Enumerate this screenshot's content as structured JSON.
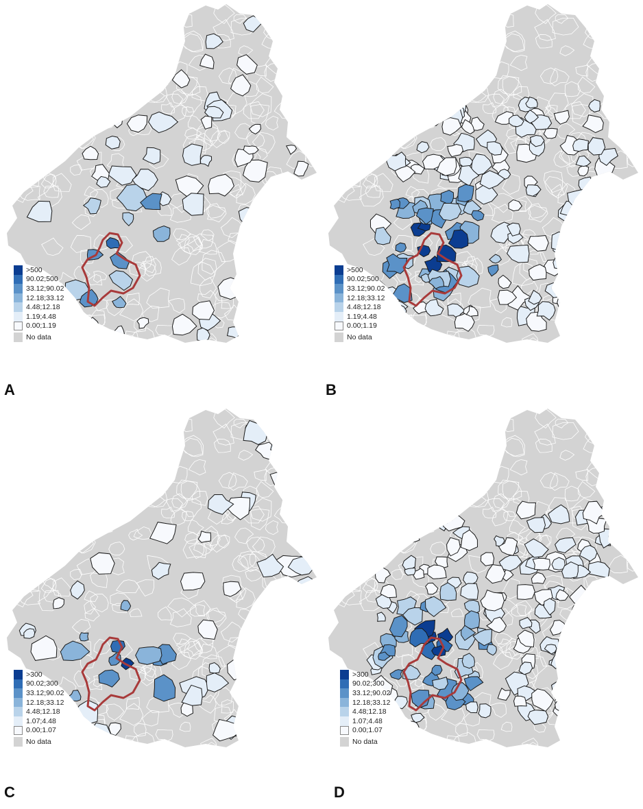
{
  "colors": {
    "region_fill": "#d3d3d3",
    "border": "#ffffff",
    "outline": "#1a1a1a",
    "study_area": "#a83a3a",
    "scale": [
      "#0b3d91",
      "#2f6db5",
      "#5b92c8",
      "#8ab4da",
      "#b9d3ea",
      "#e4eef8",
      "#f7f9fd"
    ],
    "nodata": "#d3d3d3"
  },
  "panels": [
    {
      "label": "A",
      "legend": [
        "&gt;500",
        "90.02;500",
        "33.12;90.02",
        "12.18;33.12",
        "4.48;12.18",
        "1.19;4.48",
        "0.00;1.19"
      ],
      "nodata_label": "No data",
      "pattern": "sparse"
    },
    {
      "label": "B",
      "legend": [
        "&gt;500",
        "90.02;500",
        "33.12;90.02",
        "12.18;33.12",
        "4.48;12.18",
        "1.19;4.48",
        "0.00;1.19"
      ],
      "nodata_label": "No data",
      "pattern": "dense"
    },
    {
      "label": "C",
      "legend": [
        "&gt;300",
        "90.02;300",
        "33.12;90.02",
        "12.18;33.12",
        "4.48;12.18",
        "1.07;4.48",
        "0.00;1.07"
      ],
      "nodata_label": "No data",
      "pattern": "sparse"
    },
    {
      "label": "D",
      "legend": [
        "&gt;300",
        "90.02;300",
        "33.12;90.02",
        "12.18;33.12",
        "4.48;12.18",
        "1.07;4.48",
        "0.00;1.07"
      ],
      "nodata_label": "No data",
      "pattern": "dense"
    }
  ]
}
